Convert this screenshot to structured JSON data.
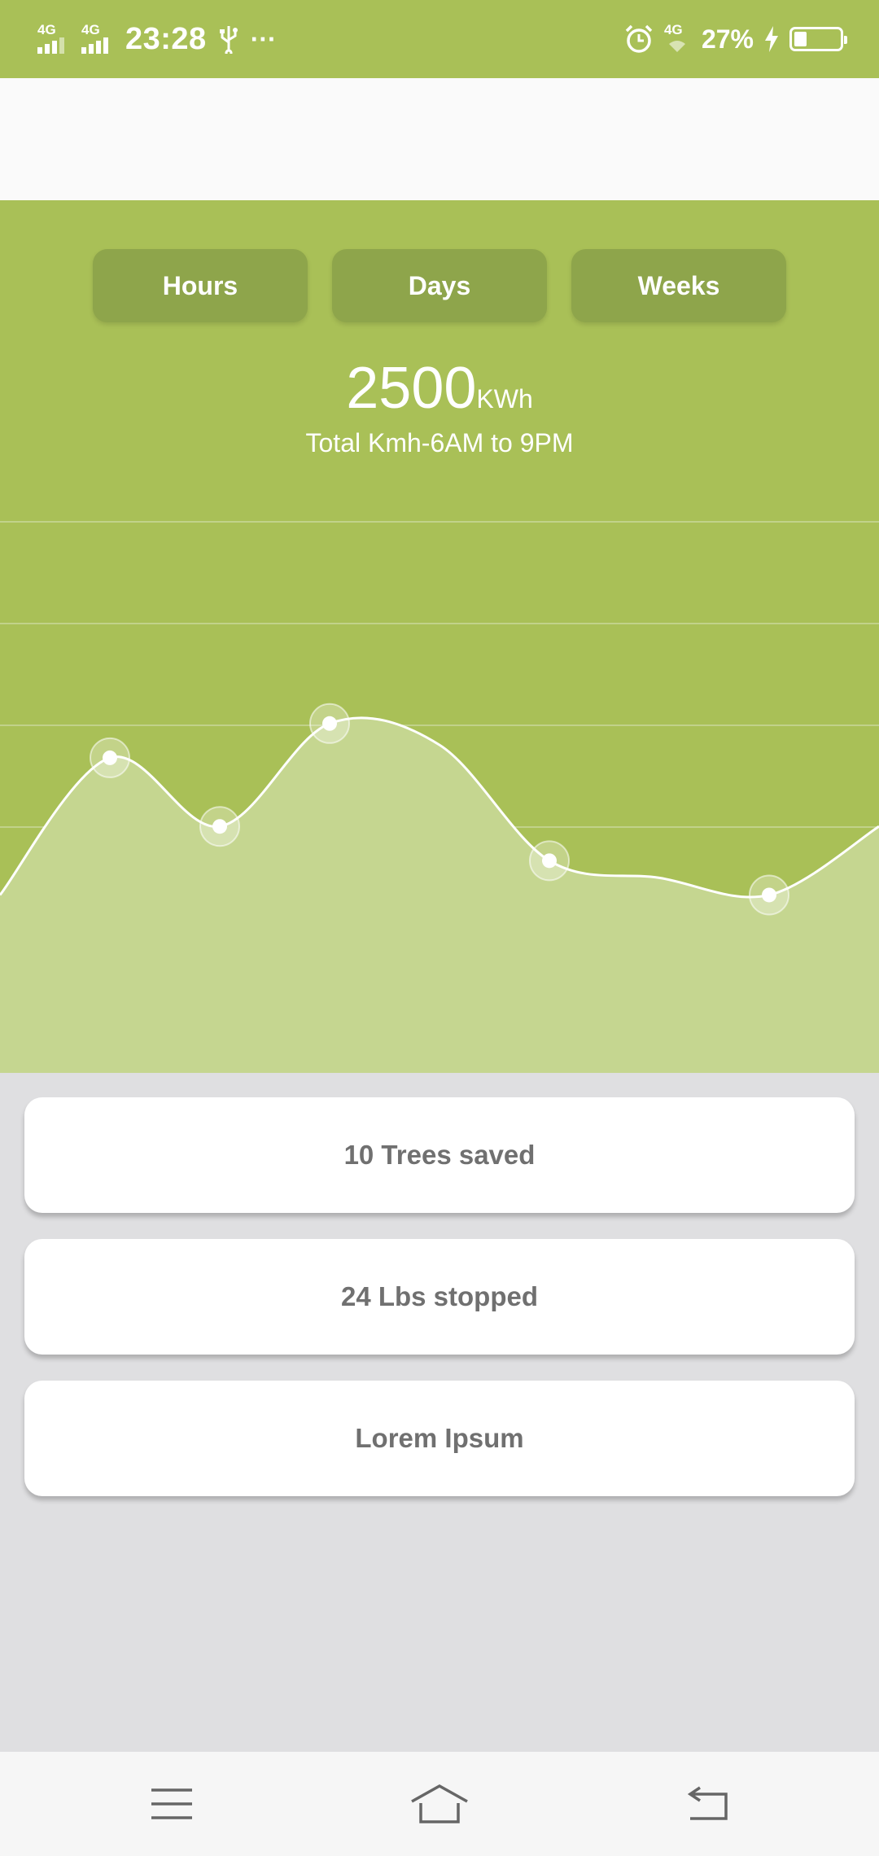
{
  "status_bar": {
    "sim1": "4G",
    "sim2": "4G",
    "time": "23:28",
    "more": "···",
    "network": "4G",
    "battery_text": "27%",
    "battery_level": 0.27,
    "icons": [
      "signal-icon",
      "usb-icon",
      "alarm-icon",
      "charging-icon",
      "battery-icon"
    ]
  },
  "tabs": [
    {
      "label": "Hours"
    },
    {
      "label": "Days"
    },
    {
      "label": "Weeks"
    }
  ],
  "summary": {
    "value": "2500",
    "unit": "KWh",
    "subtitle": "Total Kmh-6AM to 9PM"
  },
  "chart_data": {
    "type": "area",
    "title": "",
    "xlabel": "",
    "ylabel": "",
    "grid": true,
    "ylim": [
      0,
      6
    ],
    "x": [
      0,
      1,
      2,
      3,
      4,
      5,
      6,
      7,
      8
    ],
    "values": [
      1.6,
      3.2,
      2.4,
      3.6,
      3.35,
      2.0,
      1.8,
      1.6,
      2.4
    ],
    "markers": [
      1,
      2,
      3,
      5,
      7
    ],
    "colors": {
      "line": "#ffffff",
      "fill": "#c5d690",
      "grid": "#c1d28a"
    }
  },
  "cards": [
    {
      "label": "10 Trees saved"
    },
    {
      "label": "24 Lbs stopped"
    },
    {
      "label": "Lorem Ipsum"
    }
  ],
  "nav": {
    "icons": [
      "menu-icon",
      "home-icon",
      "back-icon"
    ]
  },
  "colors": {
    "primary": "#a9c057",
    "tab": "#8ea54b",
    "background": "#dfdfe1",
    "card_text": "#707070"
  }
}
